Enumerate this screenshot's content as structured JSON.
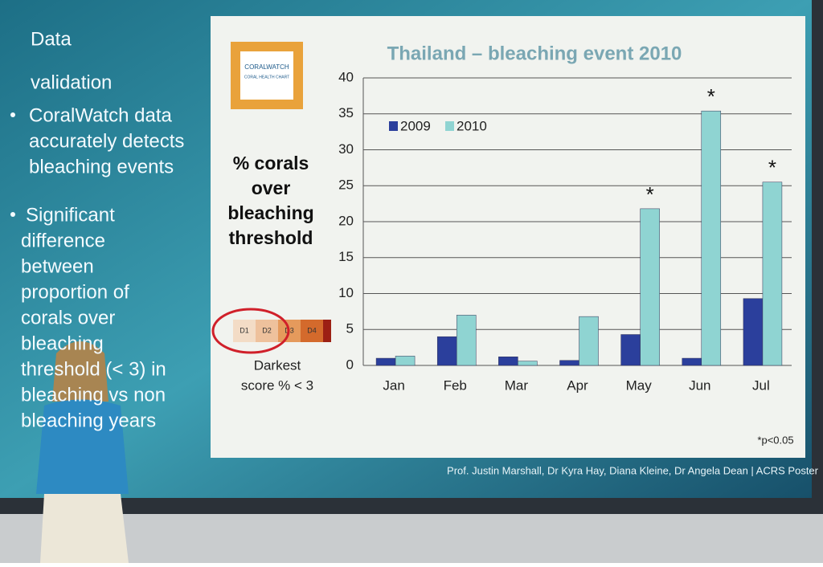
{
  "slide": {
    "heading": [
      "Data",
      "validation"
    ],
    "bullets": [
      [
        "CoralWatch data",
        "accurately detects",
        "bleaching events"
      ],
      [
        "Significant",
        "difference",
        "between",
        "proportion of",
        "corals over",
        "bleaching",
        "threshold (< 3) in",
        "bleaching vs non",
        "bleaching years"
      ]
    ],
    "logo": [
      "CORALWATCH",
      "CORAL HEALTH CHART"
    ],
    "score_chart": [
      "D1",
      "D2",
      "D3",
      "D4"
    ],
    "score_caption": [
      "Darkest",
      "score % < 3"
    ],
    "footnote": "*p<0.05",
    "credits": "Prof. Justin Marshall, Dr Kyra Hay, Diana Kleine, Dr Angela Dean | ACRS Poster"
  },
  "chart_data": {
    "type": "bar",
    "title": "Thailand – bleaching event 2010",
    "y_label": [
      "% corals",
      "over",
      "bleaching",
      "threshold"
    ],
    "categories": [
      "Jan",
      "Feb",
      "Mar",
      "Apr",
      "May",
      "Jun",
      "Jul"
    ],
    "series": [
      {
        "name": "2009",
        "color": "#2b3f9c",
        "values": [
          1,
          4,
          1.2,
          0.7,
          4.3,
          1,
          9.3
        ]
      },
      {
        "name": "2010",
        "color": "#8fd4d2",
        "values": [
          1.3,
          7,
          0.6,
          6.8,
          21.8,
          35.4,
          25.5
        ],
        "markers": [
          null,
          null,
          null,
          null,
          "*",
          "*",
          "*"
        ]
      }
    ],
    "ylim": [
      0,
      40
    ],
    "yticks": [
      0,
      5,
      10,
      15,
      20,
      25,
      30,
      35,
      40
    ],
    "grid": true,
    "legend": "top-left"
  }
}
